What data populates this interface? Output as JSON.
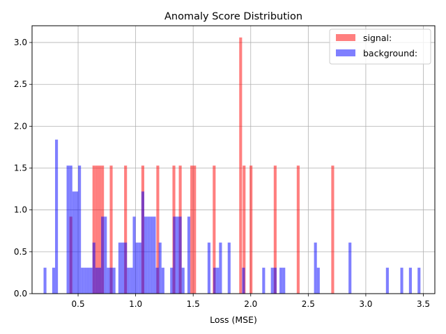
{
  "chart_data": {
    "type": "bar",
    "title": "Anomaly Score Distribution",
    "xlabel": "Loss (MSE)",
    "ylabel": "",
    "xlim": [
      0.1,
      3.6
    ],
    "ylim": [
      0,
      3.2
    ],
    "grid": true,
    "legend_position": "top-right",
    "bin_width": 0.025,
    "x_ticks": [
      0.5,
      1.0,
      1.5,
      2.0,
      2.5,
      3.0,
      3.5
    ],
    "y_ticks": [
      0.0,
      0.5,
      1.0,
      1.5,
      2.0,
      2.5,
      3.0
    ],
    "series": [
      {
        "name": "signal:",
        "color": "#ff0000",
        "opacity": 0.5,
        "bins": [
          [
            0.425,
            0.92
          ],
          [
            0.625,
            1.53
          ],
          [
            0.65,
            1.53
          ],
          [
            0.675,
            1.53
          ],
          [
            0.7,
            1.53
          ],
          [
            0.775,
            1.53
          ],
          [
            0.9,
            1.53
          ],
          [
            1.05,
            1.53
          ],
          [
            1.18,
            1.53
          ],
          [
            1.32,
            1.53
          ],
          [
            1.375,
            1.53
          ],
          [
            1.475,
            1.53
          ],
          [
            1.5,
            1.53
          ],
          [
            1.67,
            1.53
          ],
          [
            1.9,
            3.06
          ],
          [
            1.93,
            1.53
          ],
          [
            1.99,
            1.53
          ],
          [
            2.2,
            1.53
          ],
          [
            2.4,
            1.53
          ],
          [
            2.7,
            1.53
          ]
        ]
      },
      {
        "name": "background:",
        "color": "#0000ff",
        "opacity": 0.5,
        "bins": [
          [
            0.2,
            0.31
          ],
          [
            0.275,
            0.31
          ],
          [
            0.3,
            1.84
          ],
          [
            0.4,
            1.53
          ],
          [
            0.425,
            1.53
          ],
          [
            0.45,
            1.22
          ],
          [
            0.475,
            1.22
          ],
          [
            0.5,
            1.53
          ],
          [
            0.525,
            0.31
          ],
          [
            0.55,
            0.31
          ],
          [
            0.575,
            0.31
          ],
          [
            0.6,
            0.31
          ],
          [
            0.625,
            0.61
          ],
          [
            0.65,
            0.31
          ],
          [
            0.675,
            0.31
          ],
          [
            0.7,
            0.92
          ],
          [
            0.725,
            0.92
          ],
          [
            0.75,
            0.31
          ],
          [
            0.775,
            0.31
          ],
          [
            0.8,
            0.31
          ],
          [
            0.85,
            0.61
          ],
          [
            0.875,
            0.61
          ],
          [
            0.9,
            0.61
          ],
          [
            0.925,
            0.31
          ],
          [
            0.95,
            0.31
          ],
          [
            0.975,
            0.92
          ],
          [
            1.0,
            0.61
          ],
          [
            1.025,
            0.61
          ],
          [
            1.05,
            1.22
          ],
          [
            1.075,
            0.92
          ],
          [
            1.1,
            0.92
          ],
          [
            1.125,
            0.92
          ],
          [
            1.15,
            0.92
          ],
          [
            1.175,
            0.31
          ],
          [
            1.2,
            0.61
          ],
          [
            1.225,
            0.31
          ],
          [
            1.3,
            0.31
          ],
          [
            1.325,
            0.92
          ],
          [
            1.35,
            0.92
          ],
          [
            1.375,
            0.92
          ],
          [
            1.4,
            0.31
          ],
          [
            1.45,
            0.92
          ],
          [
            1.625,
            0.61
          ],
          [
            1.675,
            0.31
          ],
          [
            1.7,
            0.31
          ],
          [
            1.725,
            0.61
          ],
          [
            1.8,
            0.61
          ],
          [
            1.925,
            0.31
          ],
          [
            2.1,
            0.31
          ],
          [
            2.175,
            0.31
          ],
          [
            2.2,
            0.31
          ],
          [
            2.25,
            0.31
          ],
          [
            2.275,
            0.31
          ],
          [
            2.55,
            0.61
          ],
          [
            2.575,
            0.31
          ],
          [
            2.85,
            0.61
          ],
          [
            3.175,
            0.31
          ],
          [
            3.3,
            0.31
          ],
          [
            3.375,
            0.31
          ],
          [
            3.45,
            0.31
          ]
        ]
      }
    ]
  }
}
